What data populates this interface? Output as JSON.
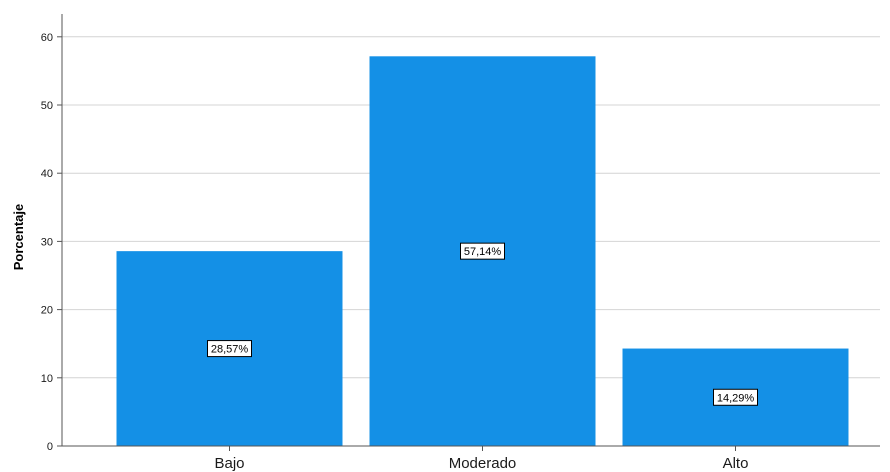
{
  "chart_data": {
    "type": "bar",
    "categories": [
      "Bajo",
      "Moderado",
      "Alto"
    ],
    "values": [
      28.57,
      57.14,
      14.29
    ],
    "data_labels": [
      "28,57%",
      "57,14%",
      "14,29%"
    ],
    "title": "",
    "xlabel": "",
    "ylabel": "Porcentaje",
    "ylim": [
      0,
      63
    ],
    "yticks": [
      0,
      10,
      20,
      30,
      40,
      50,
      60
    ],
    "ytick_labels": [
      "0",
      "10",
      "20",
      "30",
      "40",
      "50",
      "60"
    ],
    "grid": "horizontal",
    "bar_color": "#1490e6",
    "grid_color": "#d4d4d4",
    "axis_color": "#555555"
  }
}
